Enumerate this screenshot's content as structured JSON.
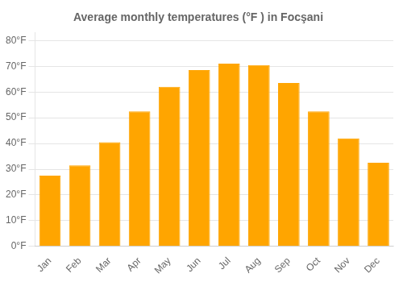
{
  "chart_data": {
    "type": "bar",
    "title": "Average monthly temperatures (°F ) in Focşani",
    "categories": [
      "Jan",
      "Feb",
      "Mar",
      "Apr",
      "May",
      "Jun",
      "Jul",
      "Aug",
      "Sep",
      "Oct",
      "Nov",
      "Dec"
    ],
    "values": [
      27.5,
      31.5,
      40.5,
      52.5,
      62.0,
      68.5,
      71.0,
      70.5,
      63.5,
      52.5,
      42.0,
      32.5
    ],
    "color": "#FFA500",
    "ylim": [
      0,
      83
    ],
    "yticks": [
      {
        "value": 0,
        "label": "0°F"
      },
      {
        "value": 10,
        "label": "10°F"
      },
      {
        "value": 20,
        "label": "20°F"
      },
      {
        "value": 30,
        "label": "30°F"
      },
      {
        "value": 40,
        "label": "40°F"
      },
      {
        "value": 50,
        "label": "50°F"
      },
      {
        "value": 60,
        "label": "60°F"
      },
      {
        "value": 70,
        "label": "70°F"
      },
      {
        "value": 80,
        "label": "80°F"
      }
    ],
    "grid": true
  }
}
